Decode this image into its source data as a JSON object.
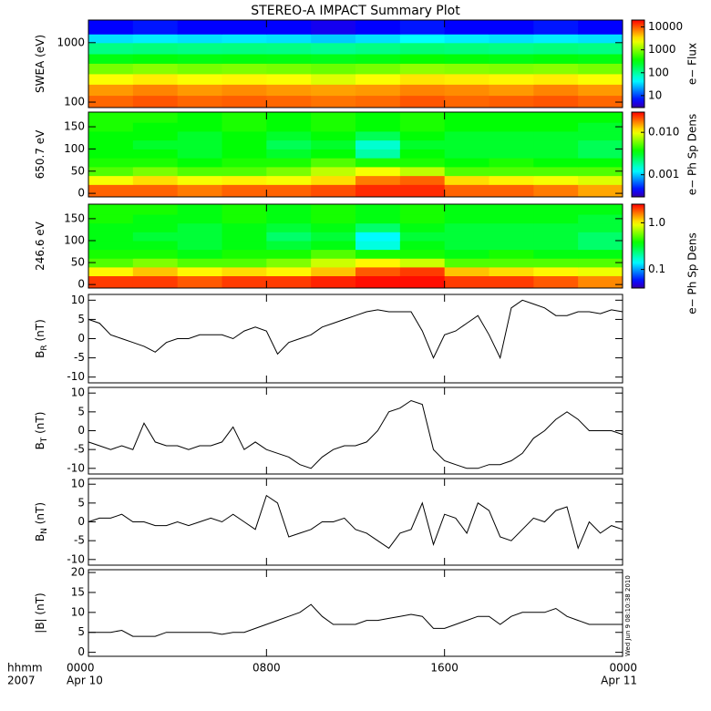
{
  "title": "STEREO-A IMPACT Summary Plot",
  "x_axis": {
    "xlim": [
      0,
      24
    ],
    "xticks": [
      {
        "value": 0,
        "label": "0000"
      },
      {
        "value": 8,
        "label": "0800"
      },
      {
        "value": 16,
        "label": "1600"
      },
      {
        "value": 24,
        "label": "0000"
      }
    ],
    "xtick_dates": [
      "Apr 10",
      null,
      null,
      "Apr 11"
    ],
    "row_labels": [
      "hhmm",
      "2007"
    ]
  },
  "timestamp": "Wed Jun  9 08:10:38 2010",
  "x": [
    0,
    0.5,
    1,
    1.5,
    2,
    2.5,
    3,
    3.5,
    4,
    4.5,
    5,
    5.5,
    6,
    6.5,
    7,
    7.5,
    8,
    8.5,
    9,
    9.5,
    10,
    10.5,
    11,
    11.5,
    12,
    12.5,
    13,
    13.5,
    14,
    14.5,
    15,
    15.5,
    16,
    16.5,
    17,
    17.5,
    18,
    18.5,
    19,
    19.5,
    20,
    20.5,
    21,
    21.5,
    22,
    22.5,
    23,
    23.5,
    24
  ],
  "chart_data": [
    {
      "type": "heatmap",
      "ylabel": "SWEA (eV)",
      "ylog": true,
      "ylim": [
        81,
        2400
      ],
      "yticks": [
        100,
        1000
      ],
      "x_edges": [
        0,
        2,
        4,
        6,
        8,
        10,
        12,
        14,
        16,
        18,
        20,
        22,
        24
      ],
      "y_edges": [
        81,
        130,
        200,
        300,
        450,
        650,
        1000,
        1400,
        2400
      ],
      "clabel": "e− Flux",
      "clim": [
        3,
        20000
      ],
      "cticks": [
        10,
        100,
        1000,
        10000
      ],
      "colorscale": "rainbow",
      "values": [
        [
          9000,
          10000,
          9000,
          9500,
          9000,
          8000,
          8500,
          10000,
          9000,
          9500,
          10000,
          9000
        ],
        [
          6000,
          7000,
          6000,
          6500,
          6000,
          5500,
          6000,
          7000,
          6500,
          6000,
          7000,
          6000
        ],
        [
          2500,
          3000,
          2500,
          2800,
          2500,
          2000,
          2500,
          3200,
          3000,
          2800,
          3000,
          2500
        ],
        [
          900,
          1000,
          900,
          950,
          900,
          800,
          900,
          1100,
          1000,
          950,
          1000,
          900
        ],
        [
          300,
          320,
          300,
          310,
          300,
          280,
          300,
          350,
          320,
          300,
          320,
          300
        ],
        [
          120,
          130,
          120,
          125,
          120,
          110,
          120,
          140,
          130,
          120,
          130,
          120
        ],
        [
          35,
          40,
          35,
          38,
          35,
          30,
          35,
          45,
          40,
          35,
          40,
          35
        ],
        [
          6,
          7,
          6,
          6,
          6,
          5,
          6,
          7,
          6,
          6,
          7,
          6
        ]
      ]
    },
    {
      "type": "heatmap",
      "ylabel": "650.7 eV",
      "ylim": [
        -8,
        183
      ],
      "yticks": [
        0,
        50,
        100,
        150
      ],
      "x_edges": [
        0,
        2,
        4,
        6,
        8,
        10,
        12,
        14,
        16,
        18,
        20,
        22,
        24
      ],
      "y_edges": [
        -8,
        20,
        40,
        60,
        80,
        100,
        120,
        140,
        160,
        183
      ],
      "clabel": "e− Ph Sp Dens",
      "clim": [
        0.0003,
        0.03
      ],
      "cticks": [
        0.001,
        {
          "value": 0.01,
          "label": "0.010"
        }
      ],
      "colorscale": "rainbow",
      "values": [
        [
          0.02,
          0.02,
          0.018,
          0.02,
          0.02,
          0.022,
          0.025,
          0.025,
          0.02,
          0.02,
          0.018,
          0.015
        ],
        [
          0.01,
          0.012,
          0.01,
          0.011,
          0.01,
          0.012,
          0.018,
          0.02,
          0.012,
          0.011,
          0.01,
          0.009
        ],
        [
          0.005,
          0.006,
          0.005,
          0.005,
          0.006,
          0.008,
          0.01,
          0.008,
          0.005,
          0.005,
          0.005,
          0.005
        ],
        [
          0.004,
          0.004,
          0.0035,
          0.004,
          0.004,
          0.005,
          0.004,
          0.004,
          0.0035,
          0.004,
          0.0035,
          0.0035
        ],
        [
          0.0035,
          0.0035,
          0.003,
          0.0035,
          0.003,
          0.0035,
          0.0018,
          0.0035,
          0.003,
          0.003,
          0.003,
          0.0025
        ],
        [
          0.0035,
          0.003,
          0.003,
          0.0035,
          0.0025,
          0.003,
          0.0015,
          0.003,
          0.003,
          0.003,
          0.003,
          0.0025
        ],
        [
          0.0035,
          0.0035,
          0.003,
          0.0035,
          0.003,
          0.0035,
          0.0025,
          0.0035,
          0.003,
          0.003,
          0.003,
          0.003
        ],
        [
          0.004,
          0.0035,
          0.0035,
          0.004,
          0.0035,
          0.004,
          0.0035,
          0.004,
          0.0035,
          0.0035,
          0.0035,
          0.003
        ],
        [
          0.004,
          0.004,
          0.0035,
          0.004,
          0.0035,
          0.004,
          0.0035,
          0.004,
          0.0035,
          0.0035,
          0.0035,
          0.0035
        ]
      ]
    },
    {
      "type": "heatmap",
      "ylabel": "246.6 eV",
      "ylim": [
        -8,
        183
      ],
      "yticks": [
        0,
        50,
        100,
        150
      ],
      "x_edges": [
        0,
        2,
        4,
        6,
        8,
        10,
        12,
        14,
        16,
        18,
        20,
        22,
        24
      ],
      "y_edges": [
        -8,
        20,
        40,
        60,
        80,
        100,
        120,
        140,
        160,
        183
      ],
      "clabel": "e− Ph Sp Dens",
      "clim": [
        0.04,
        2.5
      ],
      "cticks": [
        0.1,
        {
          "value": 1,
          "label": "1.0"
        }
      ],
      "colorscale": "rainbow",
      "values": [
        [
          2,
          2,
          1.8,
          2,
          2,
          2.2,
          2.4,
          2.4,
          2,
          2,
          1.8,
          1.5
        ],
        [
          1,
          1.2,
          1,
          1.1,
          1,
          1.2,
          1.8,
          2,
          1.2,
          1.1,
          1,
          0.9
        ],
        [
          0.5,
          0.6,
          0.5,
          0.5,
          0.6,
          0.8,
          1,
          0.8,
          0.5,
          0.5,
          0.5,
          0.5
        ],
        [
          0.4,
          0.4,
          0.35,
          0.4,
          0.4,
          0.5,
          0.4,
          0.4,
          0.35,
          0.4,
          0.35,
          0.35
        ],
        [
          0.35,
          0.35,
          0.3,
          0.35,
          0.3,
          0.35,
          0.16,
          0.35,
          0.3,
          0.3,
          0.3,
          0.25
        ],
        [
          0.35,
          0.3,
          0.3,
          0.35,
          0.25,
          0.3,
          0.14,
          0.3,
          0.3,
          0.3,
          0.3,
          0.25
        ],
        [
          0.35,
          0.35,
          0.3,
          0.35,
          0.3,
          0.35,
          0.25,
          0.35,
          0.3,
          0.3,
          0.3,
          0.3
        ],
        [
          0.4,
          0.35,
          0.35,
          0.4,
          0.35,
          0.4,
          0.35,
          0.4,
          0.35,
          0.35,
          0.35,
          0.3
        ],
        [
          0.4,
          0.4,
          0.35,
          0.4,
          0.35,
          0.4,
          0.35,
          0.4,
          0.35,
          0.35,
          0.35,
          0.35
        ]
      ]
    },
    {
      "type": "line",
      "ylabel": "B",
      "ylabel_sub": "R",
      "ylabel_unit": " (nT)",
      "ylim": [
        -11.5,
        11.5
      ],
      "yticks": [
        -10,
        -5,
        0,
        5,
        10
      ],
      "color": "#000000",
      "values": [
        5,
        4,
        1,
        0,
        -1,
        -2,
        -3.5,
        -1,
        0,
        0,
        1,
        1,
        1,
        0,
        2,
        3,
        2,
        -4,
        -1,
        0,
        1,
        3,
        4,
        5,
        6,
        7,
        7.5,
        7,
        7,
        7,
        2,
        -5,
        1,
        2,
        4,
        6,
        1,
        -5,
        8,
        10,
        9,
        8,
        6,
        6,
        7,
        7,
        6.5,
        7.5,
        7
      ]
    },
    {
      "type": "line",
      "ylabel": "B",
      "ylabel_sub": "T",
      "ylabel_unit": " (nT)",
      "ylim": [
        -11.5,
        11.5
      ],
      "yticks": [
        -10,
        -5,
        0,
        5,
        10
      ],
      "color": "#000000",
      "values": [
        -3,
        -4,
        -5,
        -4,
        -5,
        2,
        -3,
        -4,
        -4,
        -5,
        -4,
        -4,
        -3,
        1,
        -5,
        -3,
        -5,
        -6,
        -7,
        -9,
        -10,
        -7,
        -5,
        -4,
        -4,
        -3,
        0,
        5,
        6,
        8,
        7,
        -5,
        -8,
        -9,
        -10,
        -10,
        -9,
        -9,
        -8,
        -6,
        -2,
        0,
        3,
        5,
        3,
        0,
        0,
        0,
        -1
      ]
    },
    {
      "type": "line",
      "ylabel": "B",
      "ylabel_sub": "N",
      "ylabel_unit": " (nT)",
      "ylim": [
        -11.5,
        11.5
      ],
      "yticks": [
        -10,
        -5,
        0,
        5,
        10
      ],
      "color": "#000000",
      "values": [
        0,
        1,
        1,
        2,
        0,
        0,
        -1,
        -1,
        0,
        -1,
        0,
        1,
        0,
        2,
        0,
        -2,
        7,
        5,
        -4,
        -3,
        -2,
        0,
        0,
        1,
        -2,
        -3,
        -5,
        -7,
        -3,
        -2,
        5,
        -6,
        2,
        1,
        -3,
        5,
        3,
        -4,
        -5,
        -2,
        1,
        0,
        3,
        4,
        -7,
        0,
        -3,
        -1,
        -2
      ]
    },
    {
      "type": "line",
      "ylabel": "|B|",
      "ylabel_unit": " (nT)",
      "ylim": [
        -1,
        20.7
      ],
      "yticks": [
        0,
        5,
        10,
        15,
        20
      ],
      "color": "#000000",
      "values": [
        5,
        5,
        5,
        5.5,
        4,
        4,
        4,
        5,
        5,
        5,
        5,
        5,
        4.5,
        5,
        5,
        6,
        7,
        8,
        9,
        10,
        12,
        9,
        7,
        7,
        7,
        8,
        8,
        8.5,
        9,
        9.5,
        9,
        6,
        6,
        7,
        8,
        9,
        9,
        7,
        9,
        10,
        10,
        10,
        11,
        9,
        8,
        7,
        7,
        7,
        7
      ]
    }
  ]
}
